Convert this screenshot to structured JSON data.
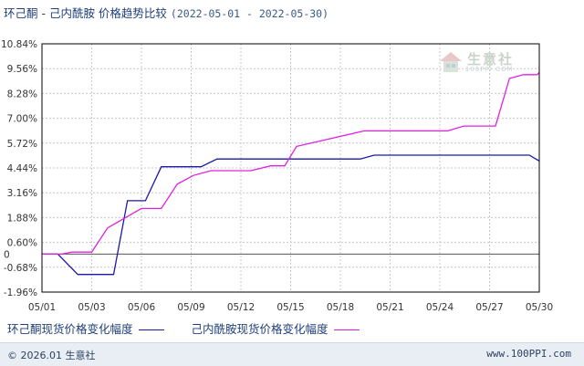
{
  "title": {
    "main": "环己酮 - 己内酰胺 价格趋势比较",
    "range": "(2022-05-01 - 2022-05-30)"
  },
  "watermark": {
    "text": "生意社",
    "url": "100PPI.COM"
  },
  "footer": {
    "copyright": "© 2026.01 生意社",
    "site": "www.100PPI.com"
  },
  "chart_data": {
    "type": "line",
    "title": "环己酮 - 己内酰胺 价格趋势比较 (2022-05-01 - 2022-05-30)",
    "xlabel": "",
    "ylabel": "",
    "x_ticks": [
      "05/01",
      "05/03",
      "05/06",
      "05/09",
      "05/12",
      "05/15",
      "05/18",
      "05/21",
      "05/24",
      "05/27",
      "05/30"
    ],
    "x_tick_days": [
      1,
      3.5,
      6,
      8.5,
      11,
      13.5,
      16,
      18.5,
      21,
      23.5,
      26
    ],
    "y_ticks": [
      "10.84%",
      "9.56%",
      "8.28%",
      "7.00%",
      "5.72%",
      "4.44%",
      "3.16%",
      "1.88%",
      "0.60%",
      "0",
      "-0.68%",
      "-1.96%"
    ],
    "y_tick_values": [
      10.84,
      9.56,
      8.28,
      7.0,
      5.72,
      4.44,
      3.16,
      1.88,
      0.6,
      0,
      -0.68,
      -1.96
    ],
    "xlim": [
      1,
      26
    ],
    "ylim": [
      -1.96,
      10.84
    ],
    "grid": true,
    "legend_position": "bottom",
    "colors": {
      "grid": "#c8c8c8",
      "axis": "#000000",
      "zero": "#555555",
      "tick_text": "#333333"
    },
    "series": [
      {
        "name": "环己酮现货价格变化幅度",
        "color": "#1a1aa8",
        "points": [
          [
            1,
            0
          ],
          [
            1.8,
            0
          ],
          [
            2.8,
            -1.05
          ],
          [
            4.6,
            -1.05
          ],
          [
            5.3,
            2.75
          ],
          [
            6.2,
            2.75
          ],
          [
            7,
            4.5
          ],
          [
            9,
            4.5
          ],
          [
            9.8,
            4.9
          ],
          [
            17,
            4.9
          ],
          [
            17.7,
            5.1
          ],
          [
            25.5,
            5.1
          ],
          [
            26,
            4.8
          ]
        ]
      },
      {
        "name": "己内酰胺现货价格变化幅度",
        "color": "#e020e0",
        "points": [
          [
            1,
            0
          ],
          [
            2,
            0
          ],
          [
            2.5,
            0.1
          ],
          [
            3.5,
            0.1
          ],
          [
            4.3,
            1.35
          ],
          [
            6,
            2.35
          ],
          [
            7,
            2.35
          ],
          [
            7.8,
            3.6
          ],
          [
            8.6,
            4.05
          ],
          [
            9.5,
            4.3
          ],
          [
            11.5,
            4.3
          ],
          [
            12.5,
            4.55
          ],
          [
            13.2,
            4.55
          ],
          [
            13.8,
            5.55
          ],
          [
            17.2,
            6.35
          ],
          [
            21.4,
            6.35
          ],
          [
            22.2,
            6.6
          ],
          [
            23.8,
            6.6
          ],
          [
            24.5,
            9.05
          ],
          [
            25.2,
            9.25
          ],
          [
            25.9,
            9.25
          ],
          [
            26.4,
            9.85
          ]
        ]
      }
    ]
  }
}
